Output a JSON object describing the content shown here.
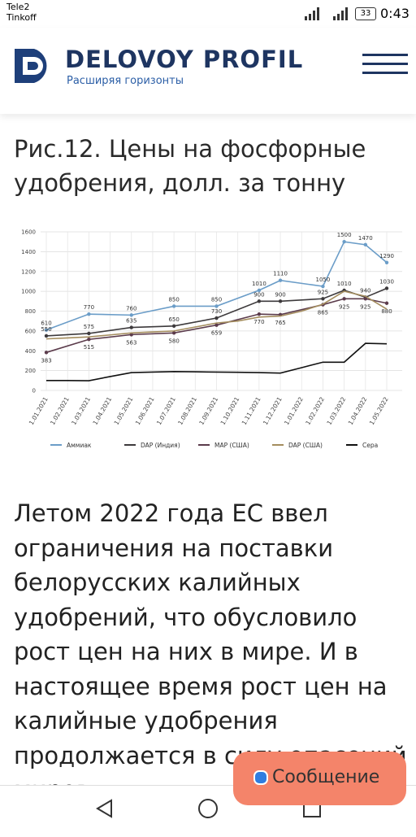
{
  "status_bar": {
    "carrier1": "Tele2",
    "carrier2": "Tinkoff",
    "battery": "33",
    "time": "0:43"
  },
  "header": {
    "brand": "DELOVOY PROFIL",
    "tagline": "Расширяя горизонты"
  },
  "article": {
    "title": "Рис.12. Цены на фосфорные удобрения, долл. за тонну",
    "paragraph": "Летом 2022 года ЕС ввел ограничения на поставки белорусских калийных удобрений, что обусловило рост цен на них в мире. И в настоящее время рост цен на калийные удобрения продолжается в силу опасений миров"
  },
  "chat_button": {
    "label": "Сообщение"
  },
  "chart_data": {
    "type": "line",
    "categories": [
      "1.01.2021",
      "1.02.2021",
      "1.03.2021",
      "1.04.2021",
      "1.05.2021",
      "1.06.2021",
      "1.07.2021",
      "1.08.2021",
      "1.09.2021",
      "1.10.2021",
      "1.11.2021",
      "1.12.2021",
      "1.01.2022",
      "1.02.2022",
      "1.03.2022",
      "1.04.2022",
      "1.05.2022"
    ],
    "ylim": [
      0,
      1600
    ],
    "yticks": [
      0,
      200,
      400,
      600,
      800,
      1000,
      1200,
      1400,
      1600
    ],
    "grid": true,
    "series": [
      {
        "name": "Аммиак",
        "color": "#6b9dc8",
        "data_labels": "above",
        "x": [
          "1.01.2021",
          "1.03.2021",
          "1.05.2021",
          "1.07.2021",
          "1.09.2021",
          "1.11.2021",
          "1.12.2021",
          "1.02.2022",
          "1.03.2022",
          "1.04.2022",
          "1.05.2022"
        ],
        "values": [
          610,
          770,
          760,
          850,
          850,
          1010,
          1110,
          1050,
          1500,
          1470,
          1290
        ]
      },
      {
        "name": "DAP (Индия)",
        "color": "#3d3a3c",
        "data_labels": "above",
        "x": [
          "1.01.2021",
          "1.03.2021",
          "1.05.2021",
          "1.07.2021",
          "1.09.2021",
          "1.11.2021",
          "1.12.2021",
          "1.02.2022",
          "1.03.2022",
          "1.04.2022",
          "1.05.2022"
        ],
        "values": [
          550,
          575,
          635,
          650,
          730,
          900,
          900,
          925,
          1010,
          940,
          1030
        ]
      },
      {
        "name": "MAP (США)",
        "color": "#5b3b4b",
        "data_labels": "below",
        "x": [
          "1.01.2021",
          "1.03.2021",
          "1.05.2021",
          "1.07.2021",
          "1.09.2021",
          "1.11.2021",
          "1.12.2021",
          "1.02.2022",
          "1.03.2022",
          "1.04.2022",
          "1.05.2022"
        ],
        "values": [
          383,
          515,
          563,
          580,
          659,
          770,
          765,
          865,
          925,
          925,
          880
        ]
      },
      {
        "name": "DAP (США)",
        "color": "#a48d5e",
        "values": [
          520,
          530,
          540,
          560,
          580,
          590,
          600,
          640,
          680,
          700,
          740,
          750,
          800,
          870,
          1000,
          950,
          820
        ]
      },
      {
        "name": "Сера",
        "color": "#111111",
        "values": [
          100,
          100,
          98,
          140,
          180,
          185,
          190,
          188,
          185,
          183,
          180,
          175,
          230,
          285,
          285,
          475,
          470
        ]
      }
    ]
  }
}
